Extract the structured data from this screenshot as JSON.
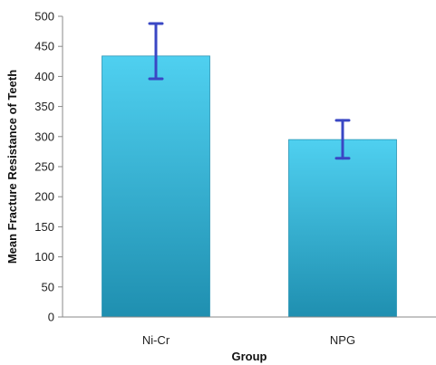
{
  "chart_data": {
    "type": "bar",
    "categories": [
      "Ni-Cr",
      "NPG"
    ],
    "values": [
      434,
      295
    ],
    "error_bars": {
      "upper": [
        488,
        327
      ],
      "lower": [
        396,
        264
      ]
    },
    "title": "",
    "xlabel": "Group",
    "ylabel": "Mean Fracture Resistance of Teeth",
    "ylim": [
      0,
      500
    ],
    "yticks": [
      0,
      50,
      100,
      150,
      200,
      250,
      300,
      350,
      400,
      450,
      500
    ],
    "grid": false,
    "legend": "none",
    "colors": {
      "bar_top": "#4fd0f0",
      "bar_bottom": "#1f8fb0",
      "error_bar": "#3a47c4",
      "axis": "#888888"
    }
  }
}
